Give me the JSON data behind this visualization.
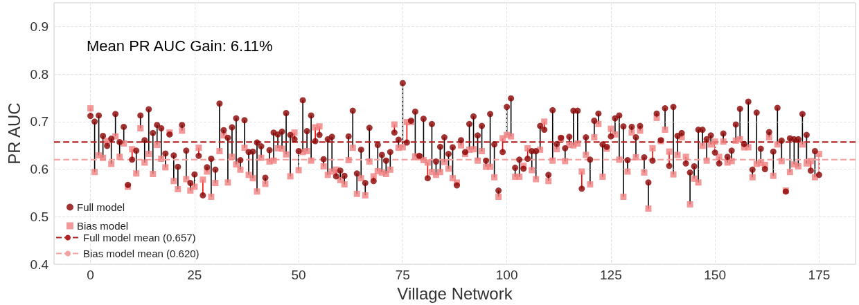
{
  "chart_data": {
    "type": "scatter",
    "xlabel": "Village Network",
    "ylabel": "PR AUC",
    "annotations": [
      "Mean PR AUC Gain: 6.11%"
    ],
    "x": [
      0,
      1,
      2,
      3,
      4,
      5,
      6,
      7,
      8,
      9,
      10,
      11,
      12,
      13,
      14,
      15,
      16,
      17,
      18,
      19,
      20,
      21,
      22,
      23,
      24,
      25,
      26,
      27,
      28,
      29,
      30,
      31,
      32,
      33,
      34,
      35,
      36,
      37,
      38,
      39,
      40,
      41,
      42,
      43,
      44,
      45,
      46,
      47,
      48,
      49,
      50,
      51,
      52,
      53,
      54,
      55,
      56,
      57,
      58,
      59,
      60,
      61,
      62,
      63,
      64,
      65,
      66,
      67,
      68,
      69,
      70,
      71,
      72,
      73,
      74,
      75,
      76,
      77,
      78,
      79,
      80,
      81,
      82,
      83,
      84,
      85,
      86,
      87,
      88,
      89,
      90,
      91,
      92,
      93,
      94,
      95,
      96,
      97,
      98,
      99,
      100,
      101,
      102,
      103,
      104,
      105,
      106,
      107,
      108,
      109,
      110,
      111,
      112,
      113,
      114,
      115,
      116,
      117,
      118,
      119,
      120,
      121,
      122,
      123,
      124,
      125,
      126,
      127,
      128,
      129,
      130,
      131,
      132,
      133,
      134,
      135,
      136,
      137,
      138,
      139,
      140,
      141,
      142,
      143,
      144,
      145,
      146,
      147,
      148,
      149,
      150,
      151,
      152,
      153,
      154,
      155,
      156,
      157,
      158,
      159,
      160,
      161,
      162,
      163,
      164,
      165,
      166,
      167,
      168,
      169,
      170,
      171,
      172,
      173,
      174,
      175
    ],
    "series": [
      {
        "name": "Full model",
        "color": "#8b0000",
        "marker": "circle",
        "values": [
          0.712,
          0.7,
          0.713,
          0.67,
          0.649,
          0.664,
          0.716,
          0.657,
          0.689,
          0.567,
          0.62,
          0.639,
          0.713,
          0.661,
          0.726,
          0.676,
          0.693,
          0.686,
          0.633,
          0.673,
          0.629,
          0.605,
          0.693,
          0.639,
          0.571,
          0.589,
          0.628,
          0.545,
          0.604,
          0.622,
          0.599,
          0.738,
          0.682,
          0.666,
          0.688,
          0.707,
          0.619,
          0.703,
          0.636,
          0.637,
          0.656,
          0.648,
          0.582,
          0.64,
          0.677,
          0.673,
          0.679,
          0.718,
          0.672,
          0.663,
          0.638,
          0.745,
          0.68,
          0.713,
          0.659,
          0.672,
          0.621,
          0.663,
          0.668,
          0.585,
          0.597,
          0.586,
          0.669,
          0.723,
          0.591,
          0.641,
          0.571,
          0.687,
          0.575,
          0.651,
          0.63,
          0.618,
          0.636,
          0.677,
          0.662,
          0.781,
          0.656,
          0.702,
          0.721,
          0.628,
          0.706,
          0.581,
          0.695,
          0.616,
          0.647,
          0.667,
          0.632,
          0.646,
          0.566,
          0.661,
          0.636,
          0.695,
          0.711,
          0.671,
          0.691,
          0.618,
          0.716,
          0.652,
          0.555,
          0.636,
          0.731,
          0.749,
          0.603,
          0.62,
          0.601,
          0.622,
          0.638,
          0.638,
          0.691,
          0.683,
          0.588,
          0.724,
          0.653,
          0.666,
          0.644,
          0.668,
          0.723,
          0.723,
          0.559,
          0.667,
          0.62,
          0.702,
          0.717,
          0.652,
          0.647,
          0.669,
          0.707,
          0.713,
          0.69,
          0.619,
          0.689,
          0.667,
          0.691,
          0.625,
          0.572,
          0.618,
          0.717,
          0.661,
          0.728,
          0.607,
          0.731,
          0.67,
          0.676,
          0.612,
          0.593,
          0.606,
          0.683,
          0.683,
          0.663,
          0.671,
          0.635,
          0.612,
          0.675,
          0.626,
          0.639,
          0.694,
          0.727,
          0.653,
          0.742,
          0.599,
          0.719,
          0.643,
          0.6,
          0.678,
          0.637,
          0.729,
          0.66,
          0.553,
          0.665,
          0.663,
          0.663,
          0.716,
          0.672,
          0.597,
          0.638,
          0.588
        ]
      },
      {
        "name": "Bias model",
        "color": "#f08080",
        "marker": "square",
        "values": [
          0.728,
          0.594,
          0.629,
          0.624,
          0.659,
          0.611,
          0.669,
          0.626,
          0.654,
          0.563,
          0.642,
          0.591,
          0.686,
          0.614,
          0.632,
          0.59,
          0.651,
          0.622,
          0.604,
          0.677,
          0.575,
          0.558,
          0.681,
          0.579,
          0.555,
          0.563,
          0.645,
          0.578,
          0.595,
          0.542,
          0.571,
          0.638,
          0.671,
          0.572,
          0.626,
          0.61,
          0.599,
          0.645,
          0.588,
          0.581,
          0.553,
          0.624,
          0.569,
          0.616,
          0.618,
          0.644,
          0.643,
          0.631,
          0.585,
          0.677,
          0.598,
          0.636,
          0.638,
          0.618,
          0.688,
          0.69,
          0.606,
          0.588,
          0.595,
          0.599,
          0.577,
          0.568,
          0.619,
          0.645,
          0.548,
          0.581,
          0.545,
          0.616,
          0.585,
          0.596,
          0.593,
          0.59,
          0.599,
          0.694,
          0.645,
          0.646,
          0.699,
          0.699,
          0.627,
          0.625,
          0.619,
          0.614,
          0.594,
          0.588,
          0.594,
          0.615,
          0.601,
          0.581,
          0.572,
          0.65,
          0.632,
          0.641,
          0.642,
          0.618,
          0.638,
          0.605,
          0.605,
          0.583,
          0.542,
          0.665,
          0.672,
          0.669,
          0.584,
          0.584,
          0.607,
          0.644,
          0.598,
          0.579,
          0.641,
          0.7,
          0.575,
          0.618,
          0.642,
          0.664,
          0.617,
          0.651,
          0.65,
          0.654,
          0.595,
          0.63,
          0.568,
          0.667,
          0.695,
          0.584,
          0.643,
          0.685,
          0.673,
          0.62,
          0.542,
          0.595,
          0.677,
          0.625,
          0.681,
          0.593,
          0.517,
          0.644,
          0.708,
          0.659,
          0.683,
          0.637,
          0.589,
          0.63,
          0.667,
          0.626,
          0.526,
          0.58,
          0.572,
          0.649,
          0.618,
          0.652,
          0.658,
          0.626,
          0.658,
          0.614,
          0.617,
          0.66,
          0.663,
          0.646,
          0.646,
          0.583,
          0.611,
          0.613,
          0.609,
          0.667,
          0.586,
          0.652,
          0.617,
          0.555,
          0.594,
          0.61,
          0.606,
          0.652,
          0.612,
          0.617,
          0.583,
          0.632
        ]
      }
    ],
    "ref_lines": [
      {
        "axis": "y",
        "value": 0.657,
        "label": "Full model mean (0.657)",
        "color": "#b22222",
        "line_style": "dashed"
      },
      {
        "axis": "y",
        "value": 0.62,
        "label": "Bias model mean (0.620)",
        "color": "#f4a0a0",
        "line_style": "dashed"
      }
    ],
    "xlim": [
      -8.75,
      183.75
    ],
    "xticks": [
      0,
      25,
      50,
      75,
      100,
      125,
      150,
      175
    ],
    "ylim": [
      0.4,
      0.95
    ],
    "yticks": [
      0.4,
      0.5,
      0.6,
      0.7,
      0.8,
      0.9
    ],
    "grid": true,
    "legend": "bottom left"
  }
}
